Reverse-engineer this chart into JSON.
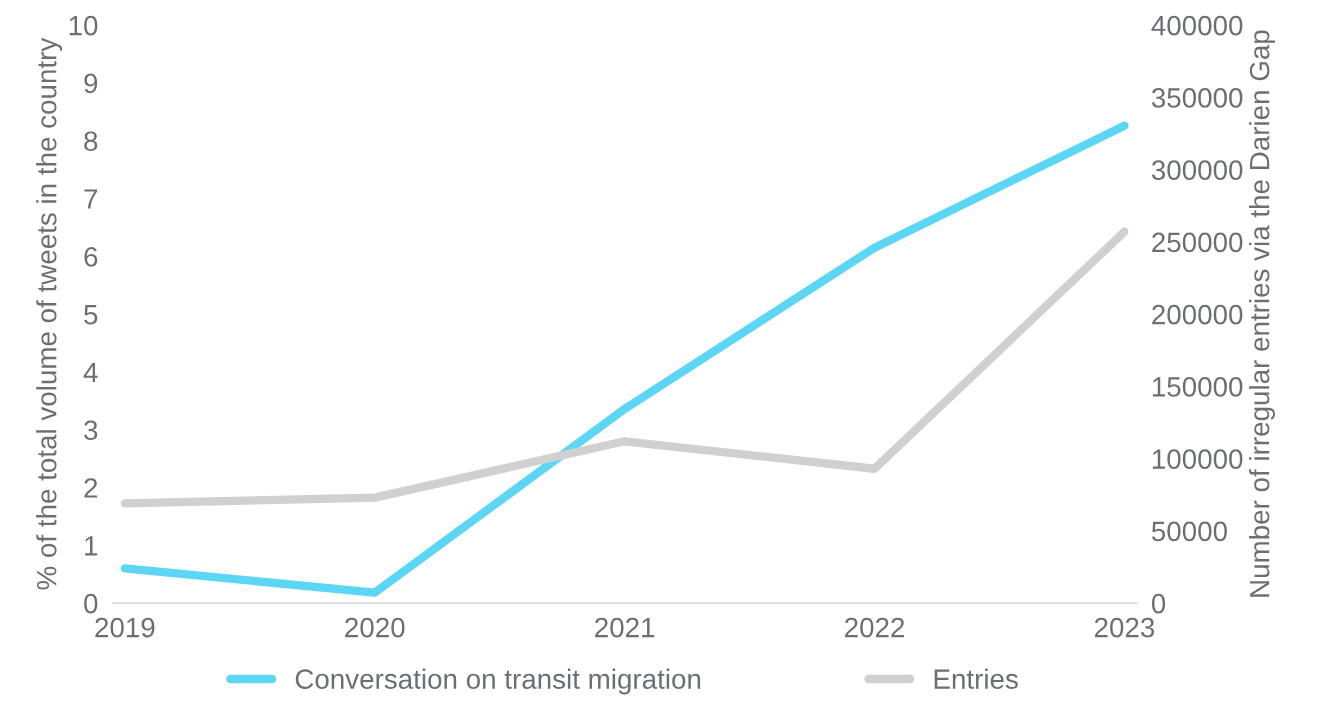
{
  "chart_data": {
    "type": "line",
    "categories": [
      "2019",
      "2020",
      "2021",
      "2022",
      "2023"
    ],
    "ylabel": "% of the total volume of tweets in the country",
    "y2label": "Number of irregular entries via the Darien Gap",
    "series": [
      {
        "name": "Conversation on transit migration",
        "color": "#5dd6f5",
        "values": [
          0.6,
          0.18,
          3.36,
          6.15,
          8.26
        ]
      },
      {
        "name": "Entries",
        "color": "#d0d0d0",
        "axis": "y2",
        "values": [
          69000,
          73000,
          112000,
          93000,
          257000
        ]
      }
    ],
    "ylim": [
      0,
      10
    ],
    "yticks": [
      0,
      1,
      2,
      3,
      4,
      5,
      6,
      7,
      8,
      9,
      10
    ],
    "y2lim": [
      0,
      400000
    ],
    "y2ticks": [
      0,
      50000,
      100000,
      150000,
      200000,
      250000,
      300000,
      350000,
      400000
    ],
    "grid": false,
    "legend": "bottom",
    "marker": "none",
    "line_style": "solid"
  }
}
